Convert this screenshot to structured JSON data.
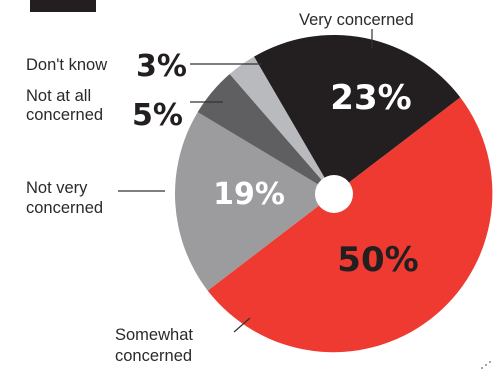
{
  "chart_data": {
    "type": "pie",
    "slices": [
      {
        "label": "Very concerned",
        "value": 23,
        "value_label": "23%",
        "color": "#231f20"
      },
      {
        "label": "Somewhat concerned",
        "value": 50,
        "value_label": "50%",
        "color": "#ee3a30"
      },
      {
        "label": "Not very concerned",
        "value": 19,
        "value_label": "19%",
        "color": "#9c9c9e"
      },
      {
        "label": "Not at all concerned",
        "value": 5,
        "value_label": "5%",
        "color": "#5f5f61"
      },
      {
        "label": "Don't know",
        "value": 3,
        "value_label": "3%",
        "color": "#b9babd"
      }
    ],
    "label_lines": {
      "very": "Very concerned",
      "dontknow": "Don't know",
      "notatall_1": "Not at all",
      "notatall_2": "concerned",
      "notvery_1": "Not very",
      "notvery_2": "concerned",
      "somewhat_1": "Somewhat",
      "somewhat_2": "concerned"
    }
  }
}
